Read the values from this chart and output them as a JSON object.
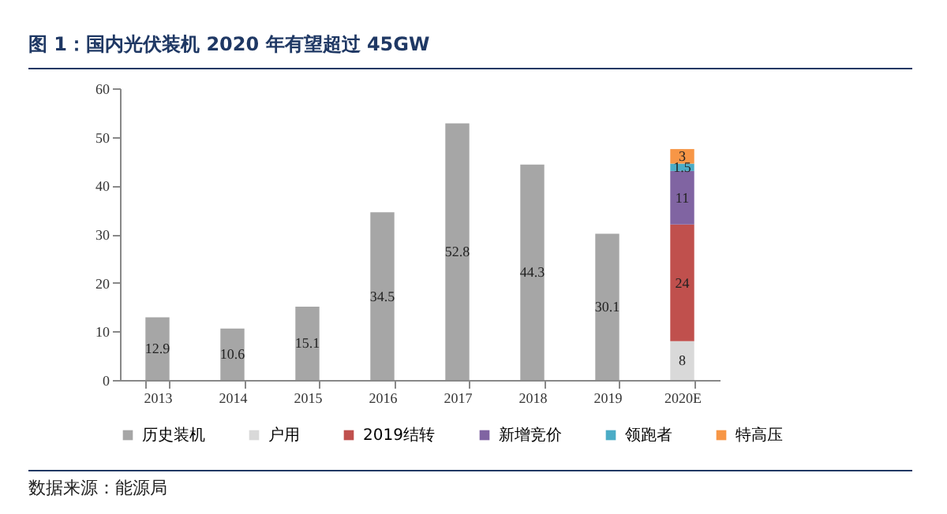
{
  "chart_data": {
    "type": "bar",
    "title": "图 1：国内光伏装机 2020 年有望超过 45GW",
    "categories": [
      "2013",
      "2014",
      "2015",
      "2016",
      "2017",
      "2018",
      "2019",
      "2020E"
    ],
    "stacked": true,
    "data_labels": true,
    "legend": "bottom",
    "ylim": [
      0,
      60
    ],
    "yticks": [
      0,
      10,
      20,
      30,
      40,
      50,
      60
    ],
    "annotations": [
      "数据来源：能源局"
    ],
    "series": [
      {
        "name": "历史装机",
        "color": "#a6a6a6",
        "values": [
          12.9,
          10.6,
          15.1,
          34.5,
          52.8,
          44.3,
          30.1,
          null
        ]
      },
      {
        "name": "户用",
        "color": "#d9d9d9",
        "values": [
          null,
          null,
          null,
          null,
          null,
          null,
          null,
          8
        ]
      },
      {
        "name": "2019结转",
        "color": "#c0504d",
        "values": [
          null,
          null,
          null,
          null,
          null,
          null,
          null,
          24
        ]
      },
      {
        "name": "新增竞价",
        "color": "#8064a2",
        "values": [
          null,
          null,
          null,
          null,
          null,
          null,
          null,
          11
        ]
      },
      {
        "name": "领跑者",
        "color": "#4bacc6",
        "values": [
          null,
          null,
          null,
          null,
          null,
          null,
          null,
          1.5
        ]
      },
      {
        "name": "特高压",
        "color": "#f79646",
        "values": [
          null,
          null,
          null,
          null,
          null,
          null,
          null,
          3
        ]
      }
    ]
  }
}
